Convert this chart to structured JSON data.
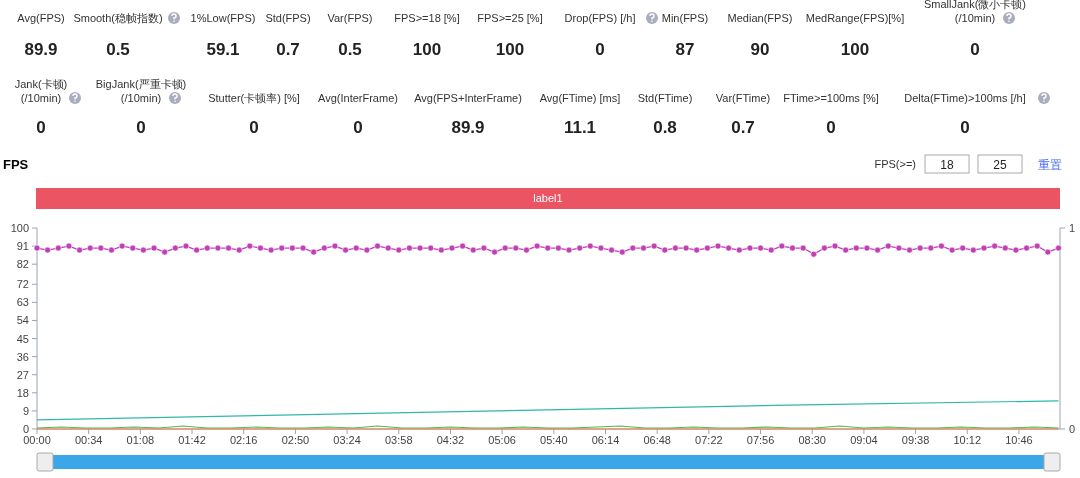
{
  "chart_data": [
    {
      "type": "other",
      "categories": [
        "Avg(FPS)",
        "Smooth(稳帧指数)",
        "1%Low(FPS)",
        "Std(FPS)",
        "Var(FPS)",
        "FPS>=18 [%]",
        "FPS>=25 [%]",
        "Drop(FPS) [/h]",
        "Min(FPS)",
        "Median(FPS)",
        "MedRange(FPS)[%]",
        "SmallJank(微小卡顿)\n(/10min)",
        "Jank(卡顿)\n(/10min)",
        "BigJank(严重卡顿)\n(/10min)",
        "Stutter(卡顿率) [%]",
        "Avg(InterFrame)",
        "Avg(FPS+InterFrame)",
        "Avg(FTime) [ms]",
        "Std(FTime)",
        "Var(FTime)",
        "FTime>=100ms [%]",
        "Delta(FTime)>100ms [/h]"
      ],
      "values": [
        89.9,
        0.5,
        59.1,
        0.7,
        0.5,
        100,
        100,
        0,
        87,
        90,
        100,
        0,
        0,
        0,
        0,
        0,
        89.9,
        11.1,
        0.8,
        0.7,
        0,
        0
      ],
      "data_labels": true
    },
    {
      "type": "line",
      "title": "FPS",
      "annotations": [
        "label1",
        "FPS(>=)",
        "18",
        "25",
        "重置"
      ],
      "xlim": [
        0,
        673
      ],
      "ylim": [
        0,
        100
      ],
      "y2lim": [
        0,
        1
      ],
      "y2ticks": [
        0,
        1
      ],
      "xticks": [
        {
          "value": 0,
          "label": "00:00"
        },
        {
          "value": 34,
          "label": "00:34"
        },
        {
          "value": 68,
          "label": "01:08"
        },
        {
          "value": 102,
          "label": "01:42"
        },
        {
          "value": 136,
          "label": "02:16"
        },
        {
          "value": 170,
          "label": "02:50"
        },
        {
          "value": 204,
          "label": "03:24"
        },
        {
          "value": 238,
          "label": "03:58"
        },
        {
          "value": 272,
          "label": "04:32"
        },
        {
          "value": 306,
          "label": "05:06"
        },
        {
          "value": 340,
          "label": "05:40"
        },
        {
          "value": 374,
          "label": "06:14"
        },
        {
          "value": 408,
          "label": "06:48"
        },
        {
          "value": 442,
          "label": "07:22"
        },
        {
          "value": 476,
          "label": "07:56"
        },
        {
          "value": 510,
          "label": "08:30"
        },
        {
          "value": 544,
          "label": "09:04"
        },
        {
          "value": 578,
          "label": "09:38"
        },
        {
          "value": 612,
          "label": "10:12"
        },
        {
          "value": 646,
          "label": "10:46"
        }
      ],
      "yticks": [
        0,
        9,
        18,
        27,
        36,
        45,
        54,
        63,
        72,
        82,
        91,
        100
      ],
      "grid": false,
      "series": [
        {
          "color": "#c23fb5",
          "marker": "circle",
          "x": [
            0,
            7,
            14,
            21,
            28,
            35,
            42,
            49,
            56,
            63,
            70,
            77,
            84,
            91,
            98,
            105,
            112,
            119,
            126,
            133,
            140,
            147,
            154,
            161,
            168,
            175,
            182,
            189,
            196,
            203,
            210,
            217,
            224,
            231,
            238,
            245,
            252,
            259,
            266,
            273,
            280,
            287,
            294,
            301,
            308,
            315,
            322,
            329,
            336,
            343,
            350,
            357,
            364,
            371,
            378,
            385,
            392,
            399,
            406,
            413,
            420,
            427,
            434,
            441,
            448,
            455,
            462,
            469,
            476,
            483,
            490,
            497,
            504,
            511,
            518,
            525,
            532,
            539,
            546,
            553,
            560,
            567,
            574,
            581,
            588,
            595,
            602,
            609,
            616,
            623,
            630,
            637,
            644,
            651,
            658,
            665,
            672
          ],
          "values": [
            90,
            89,
            90,
            91,
            89,
            90,
            90,
            89,
            91,
            90,
            89,
            90,
            88,
            90,
            91,
            89,
            90,
            90,
            90,
            89,
            91,
            90,
            89,
            90,
            90,
            90,
            88,
            90,
            91,
            89,
            90,
            89,
            91,
            90,
            89,
            90,
            90,
            90,
            89,
            90,
            91,
            89,
            90,
            88,
            90,
            90,
            89,
            91,
            90,
            90,
            89,
            90,
            91,
            90,
            89,
            88,
            90,
            90,
            91,
            89,
            90,
            90,
            89,
            90,
            91,
            90,
            89,
            90,
            90,
            89,
            91,
            90,
            90,
            87,
            90,
            91,
            89,
            90,
            90,
            89,
            91,
            90,
            89,
            90,
            90,
            91,
            89,
            90,
            89,
            90,
            91,
            90,
            89,
            90,
            91,
            88,
            90
          ]
        },
        {
          "color": "#2fb8a8",
          "marker": "none",
          "x": [
            0,
            168,
            336,
            504,
            672
          ],
          "values": [
            4.5,
            7,
            9.5,
            12,
            14
          ]
        },
        {
          "color": "#5ab552",
          "marker": "none",
          "x": [
            0,
            16,
            32,
            48,
            64,
            80,
            96,
            112,
            128,
            144,
            160,
            176,
            192,
            208,
            224,
            240,
            256,
            272,
            288,
            304,
            320,
            336,
            352,
            368,
            384,
            400,
            416,
            432,
            448,
            464,
            480,
            496,
            512,
            528,
            544,
            560,
            576,
            592,
            608,
            624,
            640,
            656,
            672
          ],
          "values": [
            0.5,
            1,
            0.5,
            0.5,
            1,
            0.5,
            1.5,
            0.5,
            0.5,
            1,
            0.5,
            0.5,
            1,
            0.5,
            1.5,
            0.5,
            0.5,
            1,
            0.5,
            0.5,
            1,
            0.5,
            0.5,
            1,
            1.5,
            0.5,
            0.5,
            1,
            0.5,
            0.5,
            1,
            0.5,
            0.5,
            1.5,
            0.5,
            1,
            0.5,
            0.5,
            1,
            0.5,
            0.5,
            1,
            0.5
          ]
        },
        {
          "color": "#f07b3f",
          "marker": "none",
          "x": [
            0,
            672
          ],
          "values": [
            0,
            0
          ]
        }
      ]
    }
  ]
}
